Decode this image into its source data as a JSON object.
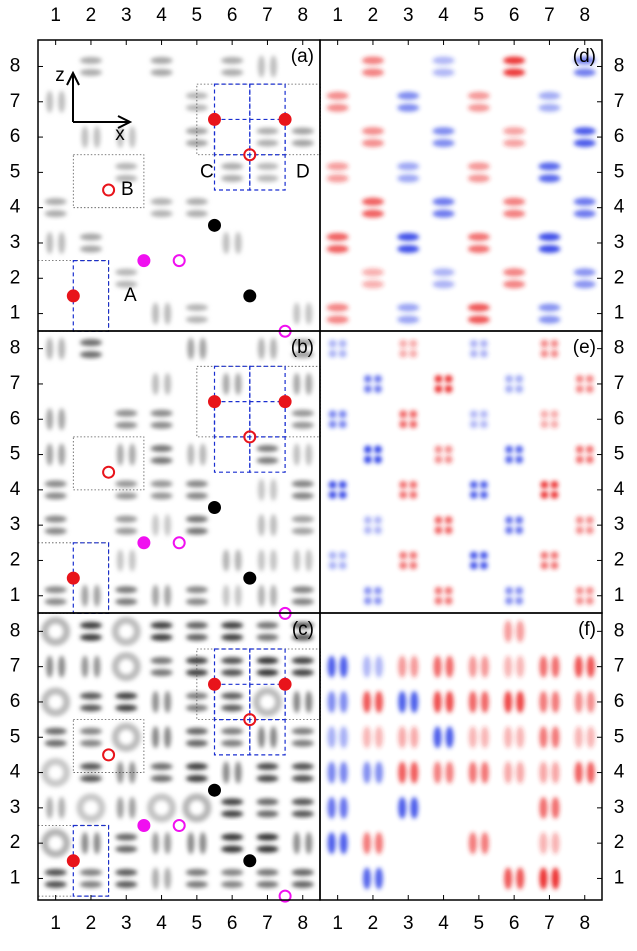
{
  "panels": [
    {
      "label": "(a)"
    },
    {
      "label": "(b)"
    },
    {
      "label": "(c)"
    },
    {
      "label": "(d)"
    },
    {
      "label": "(e)"
    },
    {
      "label": "(f)"
    }
  ],
  "x_ticks": [
    1,
    2,
    3,
    4,
    5,
    6,
    7,
    8
  ],
  "y_ticks": [
    1,
    2,
    3,
    4,
    5,
    6,
    7,
    8
  ],
  "annotations": {
    "A": "A",
    "B": "B",
    "C": "C",
    "D": "D",
    "z": "z",
    "x": "x"
  }
}
